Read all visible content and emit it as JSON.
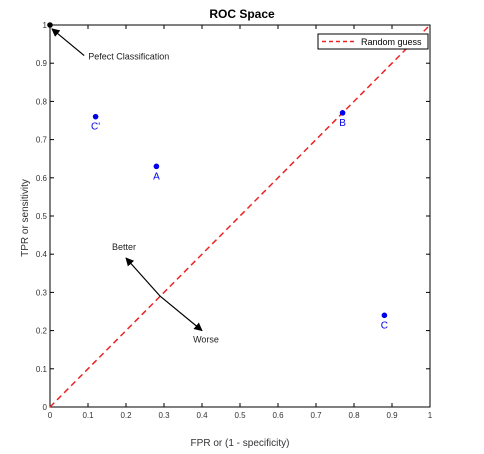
{
  "chart_data": {
    "type": "scatter",
    "title": "ROC Space",
    "xlabel": "FPR or (1 - specificity)",
    "ylabel": "TPR or sensitivity",
    "xlim": [
      0,
      1
    ],
    "ylim": [
      0,
      1
    ],
    "xticks": [
      "0",
      "0.1",
      "0.2",
      "0.3",
      "0.4",
      "0.5",
      "0.6",
      "0.7",
      "0.8",
      "0.9",
      "1"
    ],
    "yticks": [
      "0",
      "0.1",
      "0.2",
      "0.3",
      "0.4",
      "0.5",
      "0.6",
      "0.7",
      "0.8",
      "0.9",
      "1"
    ],
    "grid": false,
    "legend_position": "top-right",
    "points": [
      {
        "label": "A",
        "x": 0.28,
        "y": 0.63
      },
      {
        "label": "B",
        "x": 0.77,
        "y": 0.77
      },
      {
        "label": "C",
        "x": 0.88,
        "y": 0.24
      },
      {
        "label": "C'",
        "x": 0.12,
        "y": 0.76
      }
    ],
    "reference_line": {
      "name": "Random guess",
      "x": [
        0,
        1
      ],
      "y": [
        0,
        1
      ]
    },
    "annotations": [
      {
        "text": "Pefect Classification",
        "from": [
          0.09,
          0.92
        ],
        "to": [
          0.005,
          0.99
        ]
      },
      {
        "text": "Better",
        "from": [
          0.29,
          0.29
        ],
        "to": [
          0.2,
          0.39
        ]
      },
      {
        "text": "Worse",
        "from": [
          0.29,
          0.29
        ],
        "to": [
          0.4,
          0.2
        ]
      }
    ],
    "colors": {
      "points": "#0000ee",
      "random_guess": "#ee2222",
      "axes": "#000000",
      "text": "#222222"
    }
  }
}
